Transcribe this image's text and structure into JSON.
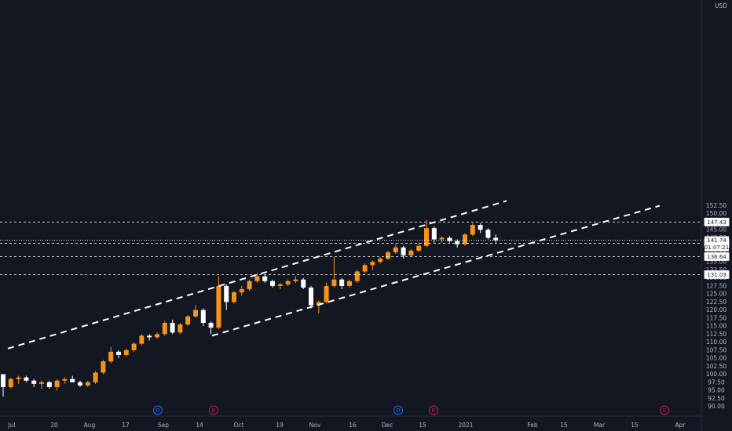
{
  "chart_data": {
    "type": "candlestick",
    "currency": "USD",
    "x_tick_labels": [
      "Jul",
      "20",
      "Aug",
      "17",
      "Sep",
      "14",
      "Oct",
      "19",
      "Nov",
      "16",
      "Dec",
      "15",
      "2021",
      "Feb",
      "15",
      "Mar",
      "15",
      "Apr"
    ],
    "y_tick_values": [
      90.0,
      92.5,
      95.0,
      97.5,
      100.0,
      102.5,
      105.0,
      107.5,
      110.0,
      112.5,
      115.0,
      117.5,
      120.0,
      122.5,
      125.0,
      127.5,
      130.0,
      132.5,
      135.0,
      137.5,
      140.0,
      142.5,
      145.0,
      147.5,
      150.0,
      152.5
    ],
    "y_tick_labels": [
      "90.00",
      "92.50",
      "95.00",
      "97.50",
      "100.00",
      "102.50",
      "105.00",
      "107.50",
      "110.00",
      "112.50",
      "115.00",
      "117.50",
      "120.00",
      "122.50",
      "125.00",
      "127.50",
      "130.00",
      "132.50",
      "135.00",
      "137.50",
      "140.00",
      "142.50",
      "145.00",
      "147.50",
      "150.00",
      "152.50"
    ],
    "ylim": [
      88.5,
      154.2
    ],
    "horizontal_levels": [
      {
        "value": 147.43,
        "label": "147.43"
      },
      {
        "value": 140.79,
        "label": "140.79"
      },
      {
        "value": 136.64,
        "label": "136.64"
      },
      {
        "value": 131.03,
        "label": "131.03"
      }
    ],
    "current_price": {
      "value": 141.74,
      "label": "141.74",
      "countdown": "01:07:21"
    },
    "channel": {
      "upper": {
        "start": [
          "Jul",
          108.0
        ],
        "end": [
          "Jan",
          154.0
        ]
      },
      "lower": {
        "start": [
          "Sep 14",
          112.0
        ],
        "end": [
          "Mar 28",
          152.5
        ]
      }
    },
    "ohlc_sequence": [
      [
        100.0,
        99.0,
        93.0,
        96.0
      ],
      [
        96.0,
        99.0,
        95.5,
        98.5
      ],
      [
        98.5,
        99.5,
        97.0,
        99.0
      ],
      [
        99.0,
        99.5,
        97.5,
        98.0
      ],
      [
        98.0,
        98.5,
        96.0,
        97.0
      ],
      [
        97.0,
        98.0,
        95.5,
        97.5
      ],
      [
        97.5,
        98.0,
        95.5,
        96.0
      ],
      [
        96.0,
        98.5,
        95.0,
        98.0
      ],
      [
        98.0,
        99.0,
        97.0,
        98.5
      ],
      [
        98.5,
        99.5,
        97.5,
        97.5
      ],
      [
        97.5,
        98.0,
        96.0,
        96.5
      ],
      [
        96.5,
        98.0,
        96.0,
        97.5
      ],
      [
        97.5,
        101.0,
        97.0,
        100.5
      ],
      [
        100.5,
        104.5,
        100.0,
        104.0
      ],
      [
        104.0,
        108.5,
        103.5,
        107.0
      ],
      [
        107.0,
        107.5,
        105.0,
        106.0
      ],
      [
        106.0,
        108.0,
        105.5,
        107.5
      ],
      [
        107.5,
        110.0,
        107.0,
        109.5
      ],
      [
        109.5,
        112.5,
        109.0,
        112.0
      ],
      [
        112.0,
        112.5,
        110.5,
        111.5
      ],
      [
        111.5,
        113.0,
        111.0,
        112.5
      ],
      [
        112.5,
        116.5,
        112.0,
        116.0
      ],
      [
        116.0,
        117.0,
        112.5,
        113.0
      ],
      [
        113.0,
        116.0,
        112.5,
        115.5
      ],
      [
        115.5,
        118.5,
        115.0,
        118.0
      ],
      [
        118.0,
        121.5,
        117.5,
        120.0
      ],
      [
        120.0,
        120.5,
        115.0,
        116.0
      ],
      [
        116.0,
        116.5,
        112.5,
        114.5
      ],
      [
        114.5,
        130.5,
        114.0,
        127.5
      ],
      [
        127.5,
        128.0,
        120.0,
        122.5
      ],
      [
        122.5,
        126.0,
        122.0,
        125.5
      ],
      [
        125.5,
        127.5,
        124.5,
        126.5
      ],
      [
        126.5,
        129.5,
        126.0,
        129.0
      ],
      [
        129.0,
        131.5,
        128.5,
        130.5
      ],
      [
        130.5,
        131.0,
        128.5,
        129.0
      ],
      [
        129.0,
        129.5,
        127.0,
        127.5
      ],
      [
        127.5,
        128.5,
        126.5,
        128.0
      ],
      [
        128.0,
        129.5,
        127.5,
        129.0
      ],
      [
        129.0,
        130.5,
        128.5,
        129.5
      ],
      [
        129.5,
        130.0,
        126.5,
        127.0
      ],
      [
        127.0,
        127.5,
        120.5,
        121.5
      ],
      [
        121.5,
        123.0,
        119.0,
        122.5
      ],
      [
        122.5,
        128.5,
        122.0,
        127.5
      ],
      [
        127.5,
        136.5,
        127.0,
        129.5
      ],
      [
        129.5,
        130.0,
        126.5,
        127.5
      ],
      [
        127.5,
        129.5,
        127.0,
        129.0
      ],
      [
        129.0,
        132.5,
        128.5,
        132.0
      ],
      [
        132.0,
        134.5,
        131.5,
        134.0
      ],
      [
        134.0,
        135.5,
        132.5,
        135.0
      ],
      [
        135.0,
        136.5,
        134.5,
        136.0
      ],
      [
        136.0,
        138.5,
        135.5,
        138.0
      ],
      [
        138.0,
        140.5,
        137.5,
        139.5
      ],
      [
        139.5,
        140.0,
        136.0,
        137.0
      ],
      [
        137.0,
        139.0,
        136.5,
        138.5
      ],
      [
        138.5,
        141.0,
        138.0,
        140.0
      ],
      [
        140.0,
        148.0,
        139.5,
        145.5
      ],
      [
        145.5,
        146.0,
        141.0,
        142.0
      ],
      [
        142.0,
        143.0,
        141.0,
        142.5
      ],
      [
        142.5,
        143.0,
        141.0,
        141.5
      ],
      [
        141.5,
        142.0,
        139.5,
        140.5
      ],
      [
        140.5,
        144.0,
        140.0,
        143.5
      ],
      [
        143.5,
        147.0,
        143.0,
        146.5
      ],
      [
        146.5,
        147.0,
        144.0,
        145.0
      ],
      [
        145.0,
        145.5,
        142.0,
        142.5
      ],
      [
        142.5,
        143.5,
        141.0,
        141.74
      ]
    ]
  },
  "events": [
    {
      "letter": "D",
      "kind": "dividend",
      "color": "#2962ff"
    },
    {
      "letter": "E",
      "kind": "earnings",
      "color": "#c2185b"
    },
    {
      "letter": "D",
      "kind": "dividend",
      "color": "#2962ff"
    },
    {
      "letter": "E",
      "kind": "earnings",
      "color": "#c2185b"
    },
    {
      "letter": "E",
      "kind": "earnings",
      "color": "#c2185b"
    }
  ],
  "colors": {
    "background": "#131722",
    "up_candle": "#f7931a",
    "down_candle": "#ffffff",
    "axis_text": "#b2b5be",
    "line": "#ffffff"
  }
}
